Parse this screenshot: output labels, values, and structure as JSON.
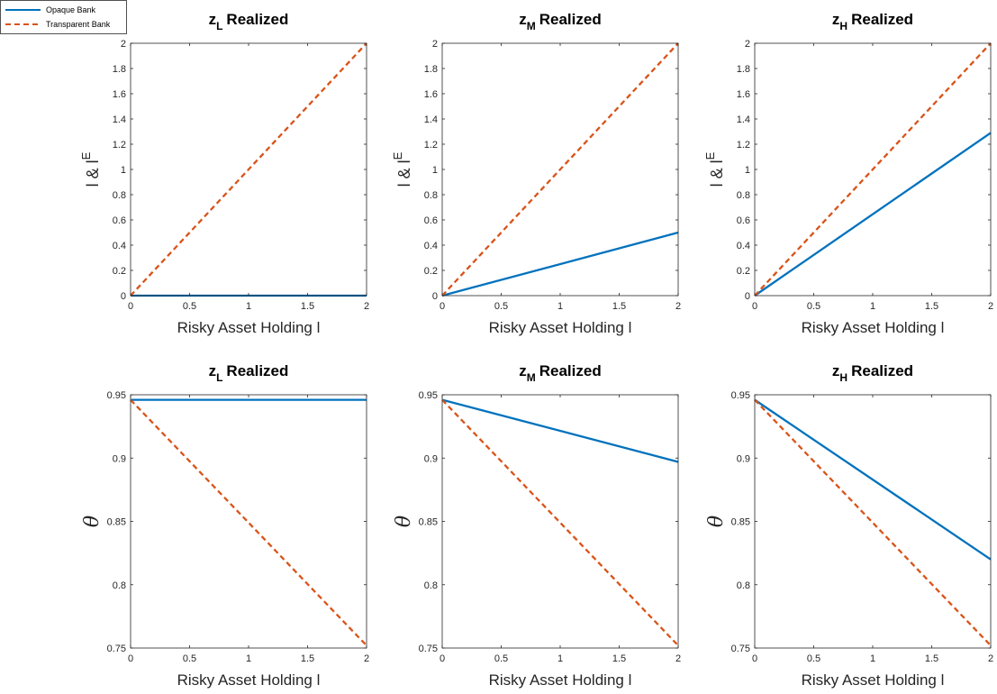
{
  "legend": {
    "entries": [
      {
        "label": "Opaque Bank",
        "color": "#0072BD",
        "style": "solid"
      },
      {
        "label": "Transparent Bank",
        "color": "#D95319",
        "style": "dashed"
      }
    ],
    "placement": "top-left"
  },
  "chart_data": [
    {
      "type": "line",
      "title": {
        "base": "z",
        "sub": "L",
        "rest": "Realized"
      },
      "xlabel": "Risky Asset Holding l",
      "ylabel": {
        "base": "l & l",
        "sup": "E"
      },
      "xlim": [
        0,
        2
      ],
      "ylim": [
        0,
        2
      ],
      "xticks": [
        "0",
        "0.5",
        "1",
        "1.5",
        "2"
      ],
      "yticks": [
        "0",
        "0.2",
        "0.4",
        "0.6",
        "0.8",
        "1",
        "1.2",
        "1.4",
        "1.6",
        "1.8",
        "2"
      ],
      "series": [
        {
          "name": "Opaque Bank",
          "x": [
            0,
            2
          ],
          "y": [
            0,
            0
          ]
        },
        {
          "name": "Transparent Bank",
          "x": [
            0,
            2
          ],
          "y": [
            0,
            2
          ]
        }
      ]
    },
    {
      "type": "line",
      "title": {
        "base": "z",
        "sub": "M",
        "rest": "Realized"
      },
      "xlabel": "Risky Asset Holding l",
      "ylabel": {
        "base": "l & l",
        "sup": "E"
      },
      "xlim": [
        0,
        2
      ],
      "ylim": [
        0,
        2
      ],
      "xticks": [
        "0",
        "0.5",
        "1",
        "1.5",
        "2"
      ],
      "yticks": [
        "0",
        "0.2",
        "0.4",
        "0.6",
        "0.8",
        "1",
        "1.2",
        "1.4",
        "1.6",
        "1.8",
        "2"
      ],
      "series": [
        {
          "name": "Opaque Bank",
          "x": [
            0,
            2
          ],
          "y": [
            0,
            0.5
          ]
        },
        {
          "name": "Transparent Bank",
          "x": [
            0,
            2
          ],
          "y": [
            0,
            2
          ]
        }
      ]
    },
    {
      "type": "line",
      "title": {
        "base": "z",
        "sub": "H",
        "rest": "Realized"
      },
      "xlabel": "Risky Asset Holding l",
      "ylabel": {
        "base": "l & l",
        "sup": "E"
      },
      "xlim": [
        0,
        2
      ],
      "ylim": [
        0,
        2
      ],
      "xticks": [
        "0",
        "0.5",
        "1",
        "1.5",
        "2"
      ],
      "yticks": [
        "0",
        "0.2",
        "0.4",
        "0.6",
        "0.8",
        "1",
        "1.2",
        "1.4",
        "1.6",
        "1.8",
        "2"
      ],
      "series": [
        {
          "name": "Opaque Bank",
          "x": [
            0,
            2
          ],
          "y": [
            0,
            1.29
          ]
        },
        {
          "name": "Transparent Bank",
          "x": [
            0,
            2
          ],
          "y": [
            0,
            2
          ]
        }
      ]
    },
    {
      "type": "line",
      "title": {
        "base": "z",
        "sub": "L",
        "rest": "Realized"
      },
      "xlabel": "Risky Asset Holding l",
      "ylabel": {
        "base": "θ",
        "sup": ""
      },
      "xlim": [
        0,
        2
      ],
      "ylim": [
        0.75,
        0.95
      ],
      "xticks": [
        "0",
        "0.5",
        "1",
        "1.5",
        "2"
      ],
      "yticks": [
        "0.75",
        "0.8",
        "0.85",
        "0.9",
        "0.95"
      ],
      "series": [
        {
          "name": "Opaque Bank",
          "x": [
            0,
            2
          ],
          "y": [
            0.946,
            0.946
          ]
        },
        {
          "name": "Transparent Bank",
          "x": [
            0,
            2
          ],
          "y": [
            0.946,
            0.752
          ]
        }
      ]
    },
    {
      "type": "line",
      "title": {
        "base": "z",
        "sub": "M",
        "rest": "Realized"
      },
      "xlabel": "Risky Asset Holding l",
      "ylabel": {
        "base": "θ",
        "sup": ""
      },
      "xlim": [
        0,
        2
      ],
      "ylim": [
        0.75,
        0.95
      ],
      "xticks": [
        "0",
        "0.5",
        "1",
        "1.5",
        "2"
      ],
      "yticks": [
        "0.75",
        "0.8",
        "0.85",
        "0.9",
        "0.95"
      ],
      "series": [
        {
          "name": "Opaque Bank",
          "x": [
            0,
            2
          ],
          "y": [
            0.946,
            0.897
          ]
        },
        {
          "name": "Transparent Bank",
          "x": [
            0,
            2
          ],
          "y": [
            0.946,
            0.752
          ]
        }
      ]
    },
    {
      "type": "line",
      "title": {
        "base": "z",
        "sub": "H",
        "rest": "Realized"
      },
      "xlabel": "Risky Asset Holding l",
      "ylabel": {
        "base": "θ",
        "sup": ""
      },
      "xlim": [
        0,
        2
      ],
      "ylim": [
        0.75,
        0.95
      ],
      "xticks": [
        "0",
        "0.5",
        "1",
        "1.5",
        "2"
      ],
      "yticks": [
        "0.75",
        "0.8",
        "0.85",
        "0.9",
        "0.95"
      ],
      "series": [
        {
          "name": "Opaque Bank",
          "x": [
            0,
            2
          ],
          "y": [
            0.946,
            0.82
          ]
        },
        {
          "name": "Transparent Bank",
          "x": [
            0,
            2
          ],
          "y": [
            0.946,
            0.752
          ]
        }
      ]
    }
  ]
}
